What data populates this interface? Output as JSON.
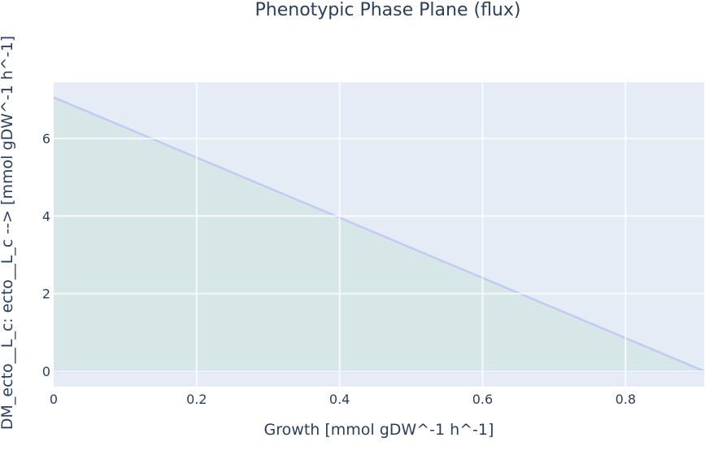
{
  "chart_data": {
    "type": "area",
    "title": "Phenotypic Phase Plane (flux)",
    "xlabel": "Growth [mmol gDW^-1 h^-1]",
    "ylabel": "DM_ecto__L_c: ecto__L_c --> [mmol gDW^-1 h^-1]",
    "xlim": [
      0,
      0.91
    ],
    "ylim": [
      -0.4,
      7.45
    ],
    "x_ticks": [
      0,
      0.2,
      0.4,
      0.6,
      0.8
    ],
    "x_tick_labels": [
      "0",
      "0.2",
      "0.4",
      "0.6",
      "0.8"
    ],
    "y_ticks": [
      0,
      2,
      4,
      6
    ],
    "y_tick_labels": [
      "0",
      "2",
      "4",
      "6"
    ],
    "grid": true,
    "series": [
      {
        "role": "maximum",
        "x": [
          0,
          0.91
        ],
        "y": [
          7.06,
          0
        ]
      },
      {
        "role": "minimum",
        "x": [
          0,
          0.91
        ],
        "y": [
          0,
          0
        ]
      }
    ],
    "colors": {
      "plot_bg": "#e5ecf6",
      "grid": "#ffffff",
      "line": "#c3c9f5",
      "fill": "#d3e6e3"
    }
  }
}
